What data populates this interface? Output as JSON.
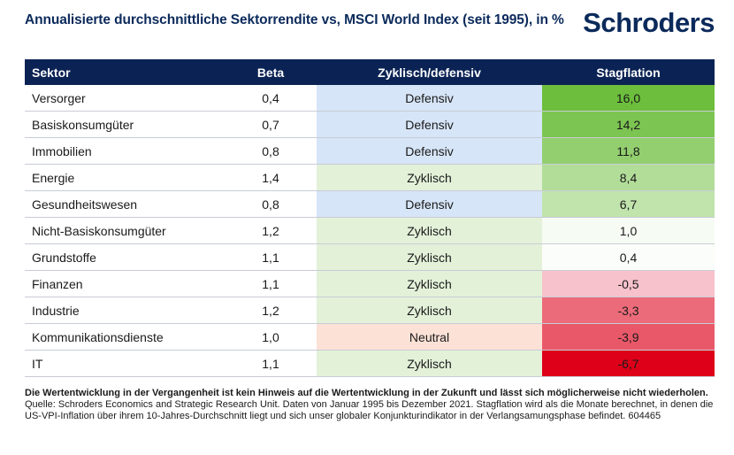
{
  "header": {
    "title": "Annualisierte durchschnittliche Sektorrendite vs, MSCI World Index (seit 1995), in  %",
    "logo": "Schroders"
  },
  "colors": {
    "navy": "#0b2354",
    "defensiv": "#d6e5f7",
    "zyklisch": "#e3f1d9",
    "neutral": "#fbe1d6"
  },
  "chart_data": {
    "type": "table",
    "columns": [
      "Sektor",
      "Beta",
      "Zyklisch/defensiv",
      "Stagflation"
    ],
    "rows": [
      {
        "sektor": "Versorger",
        "beta": "0,4",
        "typ": "Defensiv",
        "stagflation": "16,0",
        "value": 16.0
      },
      {
        "sektor": "Basiskonsumgüter",
        "beta": "0,7",
        "typ": "Defensiv",
        "stagflation": "14,2",
        "value": 14.2
      },
      {
        "sektor": "Immobilien",
        "beta": "0,8",
        "typ": "Defensiv",
        "stagflation": "11,8",
        "value": 11.8
      },
      {
        "sektor": "Energie",
        "beta": "1,4",
        "typ": "Zyklisch",
        "stagflation": "8,4",
        "value": 8.4
      },
      {
        "sektor": "Gesundheitswesen",
        "beta": "0,8",
        "typ": "Defensiv",
        "stagflation": "6,7",
        "value": 6.7
      },
      {
        "sektor": "Nicht-Basiskonsumgüter",
        "beta": "1,2",
        "typ": "Zyklisch",
        "stagflation": "1,0",
        "value": 1.0
      },
      {
        "sektor": "Grundstoffe",
        "beta": "1,1",
        "typ": "Zyklisch",
        "stagflation": "0,4",
        "value": 0.4
      },
      {
        "sektor": "Finanzen",
        "beta": "1,1",
        "typ": "Zyklisch",
        "stagflation": "-0,5",
        "value": -0.5
      },
      {
        "sektor": "Industrie",
        "beta": "1,2",
        "typ": "Zyklisch",
        "stagflation": "-3,3",
        "value": -3.3
      },
      {
        "sektor": "Kommunikationsdienste",
        "beta": "1,0",
        "typ": "Neutral",
        "stagflation": "-3,9",
        "value": -3.9
      },
      {
        "sektor": "IT",
        "beta": "1,1",
        "typ": "Zyklisch",
        "stagflation": "-6,7",
        "value": -6.7
      }
    ]
  },
  "footer": {
    "disclaimer": "Die Wertentwicklung in der Vergangenheit ist kein Hinweis auf die Wertentwicklung in der Zukunft und lässt sich möglicherweise nicht wiederholen.",
    "source": "Quelle: Schroders Economics and Strategic Research Unit. Daten von Januar 1995 bis Dezember 2021. Stagflation wird als die Monate berechnet, in denen die US-VPI-Inflation über ihrem 10-Jahres-Durchschnitt liegt und sich unser globaler Konjunkturindikator in der Verlangsamungsphase befindet. 604465"
  }
}
